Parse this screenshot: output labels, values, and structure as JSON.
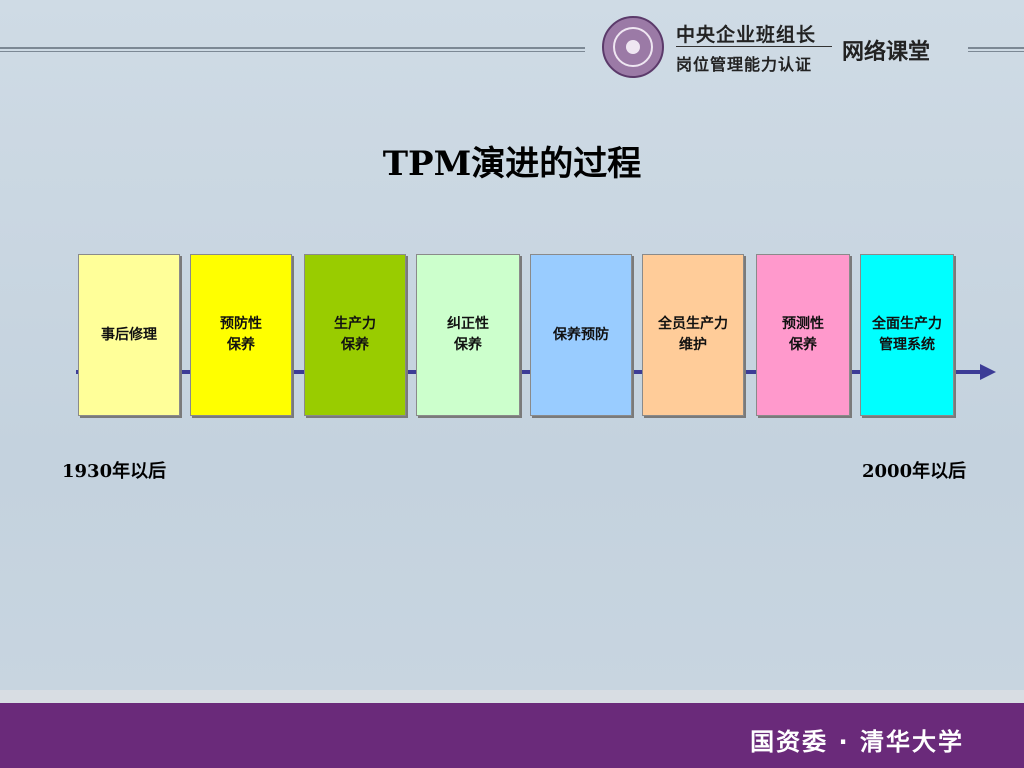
{
  "header": {
    "brand_line1": "中央企业班组长",
    "brand_line2": "岗位管理能力认证",
    "brand_right": "网络课堂"
  },
  "title": "TPM演进的过程",
  "stages": [
    {
      "label": "事后修理",
      "color": "#ffff99"
    },
    {
      "label": "预防性\n保养",
      "color": "#ffff00"
    },
    {
      "label": "生产力\n保养",
      "color": "#99cc00"
    },
    {
      "label": "纠正性\n保养",
      "color": "#ccffcc"
    },
    {
      "label": "保养预防",
      "color": "#99ccff"
    },
    {
      "label": "全员生产力\n维护",
      "color": "#ffcc99"
    },
    {
      "label": "预测性\n保养",
      "color": "#ff99cc"
    },
    {
      "label": "全面生产力\n管理系统",
      "color": "#00ffff"
    }
  ],
  "timeline": {
    "start_label": "1930年以后",
    "end_label": "2000年以后",
    "arrow_color": "#3c3c96"
  },
  "footer": {
    "text": "国资委 · 清华大学",
    "color": "#6a2a7a"
  }
}
